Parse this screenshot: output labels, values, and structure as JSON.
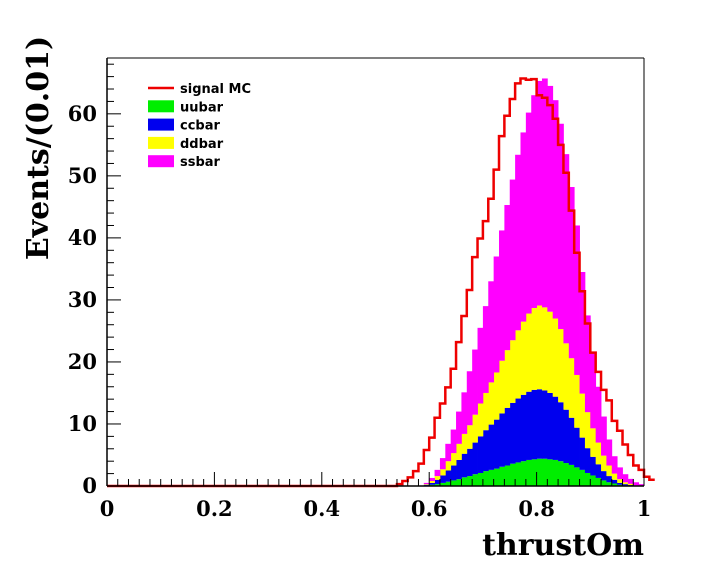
{
  "chart_data": {
    "type": "bar",
    "title": "",
    "xlabel": "thrustOm",
    "ylabel": "Events/(0.01)",
    "xlim": [
      0,
      1
    ],
    "ylim": [
      0,
      69
    ],
    "bin_width": 0.01,
    "x_ticks": [
      0,
      0.2,
      0.4,
      0.6,
      0.8,
      1
    ],
    "x_tick_labels": [
      "0",
      "0.2",
      "0.4",
      "0.6",
      "0.8",
      "1"
    ],
    "y_ticks": [
      0,
      10,
      20,
      30,
      40,
      50,
      60
    ],
    "y_tick_labels": [
      "0",
      "10",
      "20",
      "30",
      "40",
      "50",
      "60"
    ],
    "bins_x": [
      0.56,
      0.57,
      0.58,
      0.59,
      0.6,
      0.61,
      0.62,
      0.63,
      0.64,
      0.65,
      0.66,
      0.67,
      0.68,
      0.69,
      0.7,
      0.71,
      0.72,
      0.73,
      0.74,
      0.75,
      0.76,
      0.77,
      0.78,
      0.79,
      0.8,
      0.81,
      0.82,
      0.83,
      0.84,
      0.85,
      0.86,
      0.87,
      0.88,
      0.89,
      0.9,
      0.91,
      0.92,
      0.93,
      0.94,
      0.95,
      0.96,
      0.97,
      0.98,
      0.99
    ],
    "stacked_series": [
      {
        "name": "uubar",
        "color": "#00ee00",
        "values": [
          0,
          0,
          0,
          0.1,
          0.2,
          0.3,
          0.5,
          0.7,
          0.9,
          1.1,
          1.4,
          1.6,
          1.9,
          2.1,
          2.4,
          2.6,
          2.8,
          3.1,
          3.3,
          3.6,
          3.8,
          4.0,
          4.2,
          4.3,
          4.4,
          4.4,
          4.3,
          4.2,
          4.0,
          3.7,
          3.4,
          3.0,
          2.6,
          2.1,
          1.7,
          1.3,
          0.9,
          0.6,
          0.4,
          0.2,
          0.1,
          0.05,
          0,
          0
        ]
      },
      {
        "name": "ccbar",
        "color": "#0000ee",
        "values": [
          0,
          0,
          0,
          0.1,
          0.3,
          0.7,
          1.2,
          1.8,
          2.4,
          3.1,
          3.8,
          4.4,
          5.1,
          5.9,
          6.6,
          7.3,
          7.9,
          8.6,
          9.3,
          9.8,
          10.3,
          10.7,
          11.0,
          11.2,
          11.2,
          11.0,
          10.7,
          10.2,
          9.5,
          8.6,
          7.6,
          6.4,
          5.2,
          4.0,
          3.0,
          2.2,
          1.5,
          1.0,
          0.6,
          0.3,
          0.2,
          0.1,
          0,
          0
        ]
      },
      {
        "name": "ddbar",
        "color": "#ffff00",
        "values": [
          0,
          0,
          0,
          0.1,
          0.3,
          0.6,
          1.0,
          1.5,
          2.0,
          2.6,
          3.2,
          3.8,
          4.5,
          5.3,
          6.0,
          6.8,
          7.6,
          8.5,
          9.3,
          10.1,
          11.0,
          11.8,
          12.6,
          13.2,
          13.5,
          13.4,
          13.1,
          12.6,
          11.8,
          10.7,
          9.6,
          8.5,
          7.1,
          5.8,
          4.6,
          3.5,
          2.5,
          1.7,
          1.0,
          0.6,
          0.3,
          0.2,
          0.1,
          0
        ]
      },
      {
        "name": "ssbar",
        "color": "#ff00ff",
        "values": [
          0,
          0,
          0,
          0.2,
          0.5,
          1.0,
          1.8,
          2.8,
          3.8,
          5.2,
          6.7,
          8.7,
          10.5,
          12.2,
          14.0,
          16.3,
          18.7,
          21.0,
          23.4,
          25.9,
          28.3,
          30.5,
          32.4,
          34.3,
          36.2,
          36.9,
          36.4,
          35.2,
          33.1,
          30.5,
          27.6,
          24.1,
          19.6,
          15.6,
          12.1,
          9.0,
          6.3,
          4.2,
          2.8,
          1.9,
          1.3,
          0.8,
          0.5,
          0.3
        ]
      }
    ],
    "line_series": {
      "name": "signal MC",
      "color": "#ee0000",
      "values": [
        0.3,
        0.8,
        1.4,
        2.4,
        3.6,
        5.8,
        7.8,
        11.0,
        13.3,
        15.9,
        18.9,
        23.2,
        27.4,
        31.6,
        36.9,
        39.9,
        42.7,
        46.3,
        51.0,
        56.4,
        59.7,
        62.4,
        64.9,
        65.7,
        65.5,
        65.6,
        63.0,
        62.6,
        61.4,
        59.2,
        55.0,
        50.5,
        44.4,
        37.6,
        31.4,
        26.2,
        21.5,
        18.4,
        15.5,
        13.8,
        10.5,
        8.9,
        6.7,
        5.0,
        3.3,
        2.6,
        1.5,
        1.0
      ]
    },
    "line_start_x": 0.54,
    "legend_position": "top-left",
    "legend": [
      {
        "label": "signal MC",
        "kind": "line",
        "color": "#ee0000"
      },
      {
        "label": "uubar",
        "kind": "fill",
        "color": "#00ee00"
      },
      {
        "label": "ccbar",
        "kind": "fill",
        "color": "#0000ee"
      },
      {
        "label": "ddbar",
        "kind": "fill",
        "color": "#ffff00"
      },
      {
        "label": "ssbar",
        "kind": "fill",
        "color": "#ff00ff"
      }
    ]
  }
}
